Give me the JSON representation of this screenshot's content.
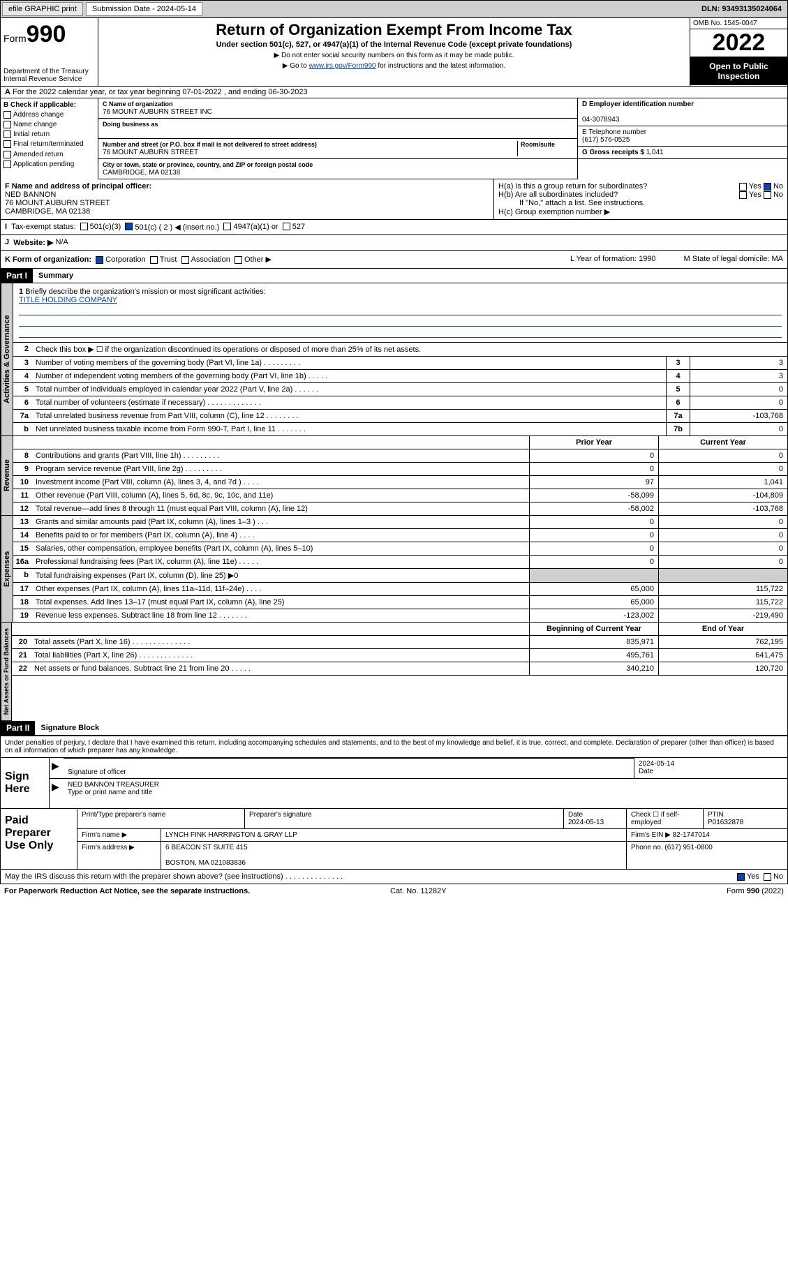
{
  "topbar": {
    "efile": "efile GRAPHIC print",
    "sub_label": "Submission Date - 2024-05-14",
    "dln": "DLN: 93493135024064"
  },
  "header": {
    "form_label": "Form",
    "form_num": "990",
    "dept": "Department of the Treasury\nInternal Revenue Service",
    "title": "Return of Organization Exempt From Income Tax",
    "subtitle": "Under section 501(c), 527, or 4947(a)(1) of the Internal Revenue Code (except private foundations)",
    "note1": "▶ Do not enter social security numbers on this form as it may be made public.",
    "note2_pre": "▶ Go to ",
    "note2_link": "www.irs.gov/Form990",
    "note2_post": " for instructions and the latest information.",
    "omb": "OMB No. 1545-0047",
    "year": "2022",
    "inspection": "Open to Public Inspection"
  },
  "lineA": "For the 2022 calendar year, or tax year beginning 07-01-2022    , and ending 06-30-2023",
  "B": {
    "label": "B Check if applicable:",
    "items": [
      "Address change",
      "Name change",
      "Initial return",
      "Final return/terminated",
      "Amended return",
      "Application pending"
    ]
  },
  "C": {
    "name_label": "C Name of organization",
    "name": "76 MOUNT AUBURN STREET INC",
    "dba_label": "Doing business as",
    "dba": "",
    "addr_label": "Number and street (or P.O. box if mail is not delivered to street address)",
    "addr": "76 MOUNT AUBURN STREET",
    "room_label": "Room/suite",
    "city_label": "City or town, state or province, country, and ZIP or foreign postal code",
    "city": "CAMBRIDGE, MA  02138"
  },
  "D": {
    "label": "D Employer identification number",
    "val": "04-3078943"
  },
  "E": {
    "label": "E Telephone number",
    "val": "(617) 576-0525"
  },
  "G": {
    "label": "G Gross receipts $ ",
    "val": "1,041"
  },
  "F": {
    "label": "F  Name and address of principal officer:",
    "name": "NED BANNON",
    "addr1": "76 MOUNT AUBURN STREET",
    "addr2": "CAMBRIDGE, MA  02138"
  },
  "H": {
    "a": "H(a)  Is this a group return for subordinates?",
    "a_no": "No",
    "b": "H(b)  Are all subordinates included?",
    "b_note": "If \"No,\" attach a list. See instructions.",
    "c": "H(c)  Group exemption number ▶"
  },
  "I": {
    "label": "Tax-exempt status:",
    "opts": [
      "501(c)(3)",
      "501(c) ( 2 ) ◀ (insert no.)",
      "4947(a)(1) or",
      "527"
    ]
  },
  "J": {
    "label": "Website: ▶",
    "val": "N/A"
  },
  "K": {
    "label": "K Form of organization:",
    "opts": [
      "Corporation",
      "Trust",
      "Association",
      "Other ▶"
    ],
    "L": "L Year of formation: 1990",
    "M": "M State of legal domicile: MA"
  },
  "partI": {
    "header": "Part I",
    "title": "Summary"
  },
  "summary": {
    "q1": "Briefly describe the organization's mission or most significant activities:",
    "q1v": "TITLE HOLDING COMPANY",
    "q2": "Check this box ▶ ☐ if the organization discontinued its operations or disposed of more than 25% of its net assets.",
    "rows_a": [
      {
        "n": "3",
        "t": "Number of voting members of the governing body (Part VI, line 1a)   .    .    .    .    .    .    .    .    .",
        "box": "3",
        "v": "3"
      },
      {
        "n": "4",
        "t": "Number of independent voting members of the governing body (Part VI, line 1b)    .    .    .    .    .",
        "box": "4",
        "v": "3"
      },
      {
        "n": "5",
        "t": "Total number of individuals employed in calendar year 2022 (Part V, line 2a)    .    .    .    .    .    .",
        "box": "5",
        "v": "0"
      },
      {
        "n": "6",
        "t": "Total number of volunteers (estimate if necessary)    .    .    .    .    .    .    .    .    .    .    .    .    .",
        "box": "6",
        "v": "0"
      },
      {
        "n": "7a",
        "t": "Total unrelated business revenue from Part VIII, column (C), line 12    .    .    .    .    .    .    .    .",
        "box": "7a",
        "v": "-103,768"
      },
      {
        "n": "b",
        "t": "Net unrelated business taxable income from Form 990-T, Part I, line 11    .    .    .    .    .    .    .",
        "box": "7b",
        "v": "0"
      }
    ],
    "head_prior": "Prior Year",
    "head_curr": "Current Year",
    "rows_rev": [
      {
        "n": "8",
        "t": "Contributions and grants (Part VIII, line 1h)    .    .    .    .    .    .    .    .    .",
        "p": "0",
        "c": "0"
      },
      {
        "n": "9",
        "t": "Program service revenue (Part VIII, line 2g)    .    .    .    .    .    .    .    .    .",
        "p": "0",
        "c": "0"
      },
      {
        "n": "10",
        "t": "Investment income (Part VIII, column (A), lines 3, 4, and 7d )    .    .    .    .",
        "p": "97",
        "c": "1,041"
      },
      {
        "n": "11",
        "t": "Other revenue (Part VIII, column (A), lines 5, 6d, 8c, 9c, 10c, and 11e)",
        "p": "-58,099",
        "c": "-104,809"
      },
      {
        "n": "12",
        "t": "Total revenue—add lines 8 through 11 (must equal Part VIII, column (A), line 12)",
        "p": "-58,002",
        "c": "-103,768"
      }
    ],
    "rows_exp": [
      {
        "n": "13",
        "t": "Grants and similar amounts paid (Part IX, column (A), lines 1–3 )    .    .    .",
        "p": "0",
        "c": "0"
      },
      {
        "n": "14",
        "t": "Benefits paid to or for members (Part IX, column (A), line 4)    .    .    .    .",
        "p": "0",
        "c": "0"
      },
      {
        "n": "15",
        "t": "Salaries, other compensation, employee benefits (Part IX, column (A), lines 5–10)",
        "p": "0",
        "c": "0"
      },
      {
        "n": "16a",
        "t": "Professional fundraising fees (Part IX, column (A), line 11e)    .    .    .    .    .",
        "p": "0",
        "c": "0"
      },
      {
        "n": "b",
        "t": "Total fundraising expenses (Part IX, column (D), line 25) ▶0",
        "p": "",
        "c": "",
        "grey": true
      },
      {
        "n": "17",
        "t": "Other expenses (Part IX, column (A), lines 11a–11d, 11f–24e)    .    .    .    .",
        "p": "65,000",
        "c": "115,722"
      },
      {
        "n": "18",
        "t": "Total expenses. Add lines 13–17 (must equal Part IX, column (A), line 25)",
        "p": "65,000",
        "c": "115,722"
      },
      {
        "n": "19",
        "t": "Revenue less expenses. Subtract line 18 from line 12    .    .    .    .    .    .    .",
        "p": "-123,002",
        "c": "-219,490"
      }
    ],
    "head_beg": "Beginning of Current Year",
    "head_end": "End of Year",
    "rows_net": [
      {
        "n": "20",
        "t": "Total assets (Part X, line 16)    .    .    .    .    .    .    .    .    .    .    .    .    .    .",
        "p": "835,971",
        "c": "762,195"
      },
      {
        "n": "21",
        "t": "Total liabilities (Part X, line 26)    .    .    .    .    .    .    .    .    .    .    .    .    .",
        "p": "495,761",
        "c": "641,475"
      },
      {
        "n": "22",
        "t": "Net assets or fund balances. Subtract line 21 from line 20    .    .    .    .    .",
        "p": "340,210",
        "c": "120,720"
      }
    ]
  },
  "vtabs": {
    "gov": "Activities & Governance",
    "rev": "Revenue",
    "exp": "Expenses",
    "net": "Net Assets or\nFund Balances"
  },
  "partII": {
    "header": "Part II",
    "title": "Signature Block"
  },
  "sig": {
    "decl": "Under penalties of perjury, I declare that I have examined this return, including accompanying schedules and statements, and to the best of my knowledge and belief, it is true, correct, and complete. Declaration of preparer (other than officer) is based on all information of which preparer has any knowledge.",
    "sign_here": "Sign Here",
    "sig_officer": "Signature of officer",
    "date": "2024-05-14",
    "date_l": "Date",
    "name": "NED BANNON TREASURER",
    "name_l": "Type or print name and title"
  },
  "paid": {
    "label": "Paid Preparer Use Only",
    "h1": "Print/Type preparer's name",
    "h2": "Preparer's signature",
    "h3": "Date",
    "h3v": "2024-05-13",
    "h4": "Check ☐ if self-employed",
    "h5": "PTIN",
    "h5v": "P01632878",
    "firm_l": "Firm's name    ▶",
    "firm": "LYNCH FINK HARRINGTON & GRAY LLP",
    "ein_l": "Firm's EIN ▶",
    "ein": "82-1747014",
    "addr_l": "Firm's address ▶",
    "addr1": "6 BEACON ST SUITE 415",
    "addr2": "BOSTON, MA  021083836",
    "phone_l": "Phone no.",
    "phone": "(617) 951-0800"
  },
  "may_discuss": "May the IRS discuss this return with the preparer shown above? (see instructions)    .    .    .    .    .    .    .    .    .    .    .    .    .    .",
  "footer": {
    "l": "For Paperwork Reduction Act Notice, see the separate instructions.",
    "m": "Cat. No. 11282Y",
    "r": "Form 990 (2022)"
  }
}
